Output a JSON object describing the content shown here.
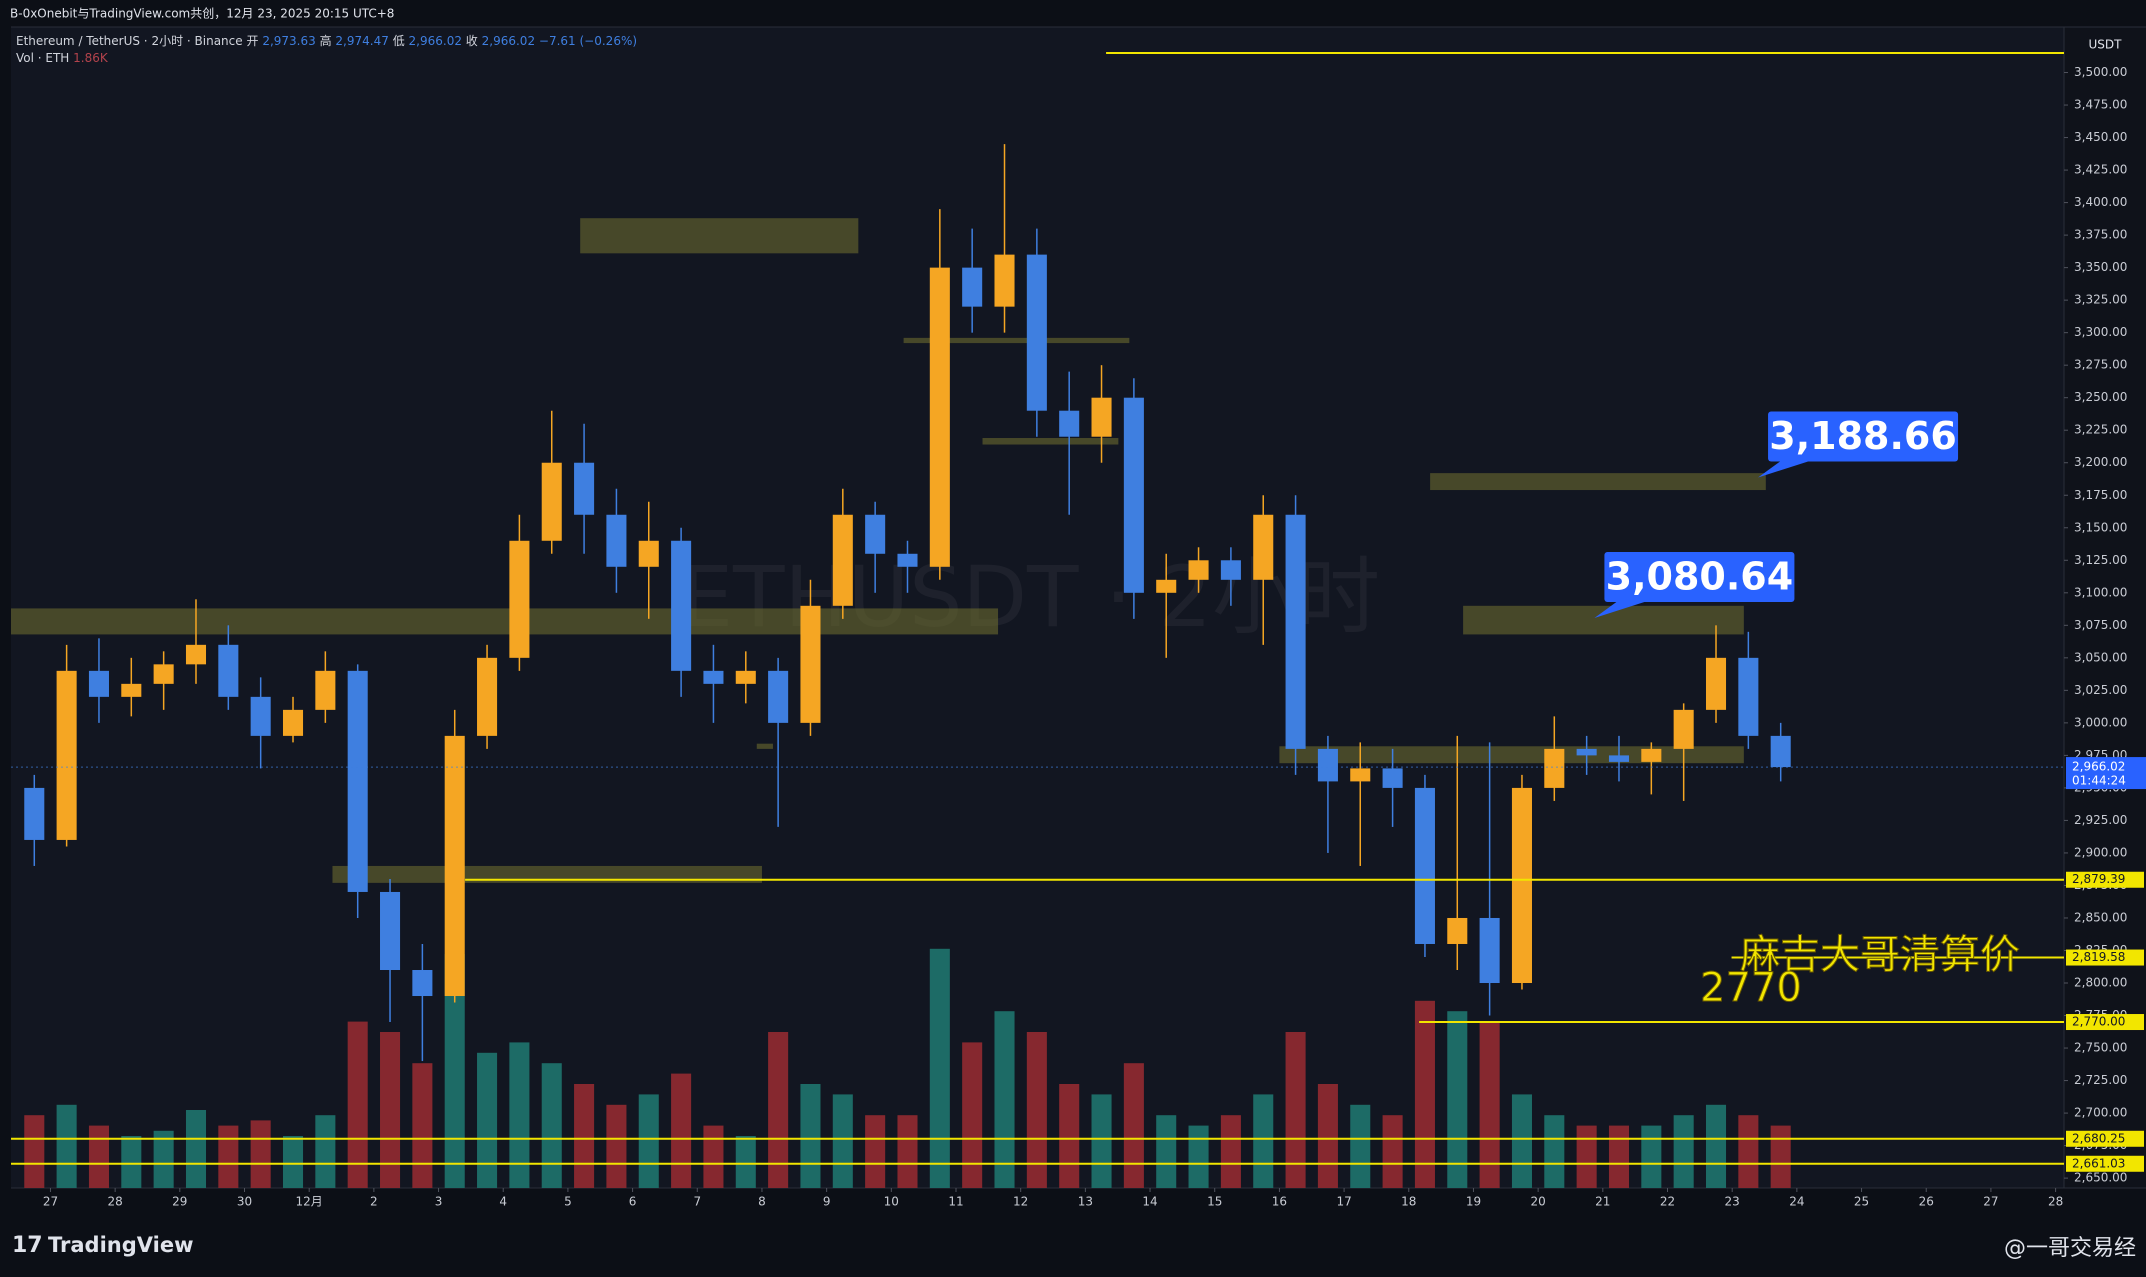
{
  "header": {
    "caption": "B-0xOnebit与TradingView.com共创，12月 23, 2025 20:15 UTC+8",
    "symbol": "Ethereum / TetherUS · 2小时 · Binance",
    "ohlc": [
      {
        "label": "开",
        "value": "2,973.63"
      },
      {
        "label": "高",
        "value": "2,974.47"
      },
      {
        "label": "低",
        "value": "2,966.02"
      },
      {
        "label": "收",
        "value": "2,966.02"
      }
    ],
    "change": "−7.61 (−0.26%)",
    "vol_label": "Vol · ETH",
    "vol_value": "1.86K",
    "currency": "USDT",
    "watermark": "ETHUSDT · 2小时"
  },
  "chart_data": {
    "type": "candlestick",
    "up_color": "#f5a623",
    "down_color": "#3f7fe0",
    "vol_up_color": "#1d6b66",
    "vol_down_color": "#86282f",
    "x": [
      -0.25,
      0.25,
      0.75,
      1.25,
      1.75,
      2.25,
      2.75,
      3.25,
      3.75,
      4.25,
      4.75,
      5.25,
      5.75,
      6.25,
      6.75,
      7.25,
      7.75,
      8.25,
      8.75,
      9.25,
      9.75,
      10.25,
      10.75,
      11.25,
      11.75,
      12.25,
      12.75,
      13.25,
      13.75,
      14.25,
      14.75,
      15.25,
      15.75,
      16.25,
      16.75,
      17.25,
      17.75,
      18.25,
      18.75,
      19.25,
      19.75,
      20.25,
      20.75,
      21.25,
      21.75,
      22.25,
      22.75,
      23.25,
      23.75,
      24.25,
      24.75,
      25.25,
      25.75,
      26.25,
      26.75
    ],
    "open": [
      2950,
      2910,
      3040,
      3020,
      3030,
      3045,
      3060,
      3020,
      2990,
      3010,
      3040,
      2870,
      2810,
      2790,
      2990,
      3050,
      3140,
      3200,
      3160,
      3120,
      3140,
      3040,
      3030,
      3040,
      3000,
      3090,
      3160,
      3130,
      3120,
      3350,
      3320,
      3360,
      3240,
      3220,
      3250,
      3100,
      3110,
      3125,
      3110,
      3160,
      2980,
      2955,
      2965,
      2950,
      2830,
      2850,
      2800,
      2950,
      2980,
      2975,
      2970,
      2980,
      3010,
      3050,
      2990
    ],
    "high": [
      2960,
      3060,
      3065,
      3050,
      3055,
      3095,
      3075,
      3035,
      3020,
      3055,
      3045,
      2880,
      2830,
      3010,
      3060,
      3160,
      3240,
      3230,
      3180,
      3170,
      3150,
      3060,
      3055,
      3050,
      3110,
      3180,
      3170,
      3140,
      3395,
      3380,
      3445,
      3380,
      3270,
      3275,
      3265,
      3130,
      3135,
      3135,
      3175,
      3175,
      2990,
      2985,
      2980,
      2960,
      2990,
      2985,
      2960,
      3005,
      2990,
      2990,
      2985,
      3015,
      3075,
      3070,
      3000
    ],
    "low": [
      2890,
      2905,
      3000,
      3005,
      3010,
      3030,
      3010,
      2965,
      2985,
      3000,
      2850,
      2770,
      2740,
      2785,
      2980,
      3040,
      3130,
      3130,
      3100,
      3080,
      3020,
      3000,
      3015,
      2920,
      2990,
      3080,
      3100,
      3100,
      3110,
      3300,
      3300,
      3220,
      3160,
      3200,
      3080,
      3050,
      3100,
      3090,
      3060,
      2960,
      2900,
      2890,
      2920,
      2820,
      2810,
      2775,
      2795,
      2940,
      2960,
      2955,
      2945,
      2940,
      3000,
      2980,
      2955
    ],
    "close": [
      2910,
      3040,
      3020,
      3030,
      3045,
      3060,
      3020,
      2990,
      3010,
      3040,
      2870,
      2810,
      2790,
      2990,
      3050,
      3140,
      3200,
      3160,
      3120,
      3140,
      3040,
      3030,
      3040,
      3000,
      3090,
      3160,
      3130,
      3120,
      3350,
      3320,
      3360,
      3240,
      3220,
      3250,
      3100,
      3110,
      3125,
      3110,
      3160,
      2980,
      2955,
      2965,
      2950,
      2830,
      2850,
      2800,
      2950,
      2980,
      2975,
      2970,
      2980,
      3010,
      3050,
      2990,
      2966.02
    ],
    "volume": [
      14,
      16,
      12,
      10,
      11,
      15,
      12,
      13,
      10,
      14,
      32,
      30,
      24,
      45,
      26,
      28,
      24,
      20,
      16,
      18,
      22,
      12,
      10,
      30,
      20,
      18,
      14,
      14,
      46,
      28,
      34,
      30,
      20,
      18,
      24,
      14,
      12,
      14,
      18,
      30,
      20,
      16,
      14,
      36,
      34,
      32,
      18,
      14,
      12,
      12,
      12,
      14,
      16,
      14,
      12
    ],
    "vlim": [
      0,
      60
    ],
    "xlim": [
      -0.61,
      31.13
    ],
    "ylim": [
      2642.4,
      3535
    ],
    "xticks": [
      {
        "value": 0,
        "label": "27"
      },
      {
        "value": 1,
        "label": "28"
      },
      {
        "value": 2,
        "label": "29"
      },
      {
        "value": 3,
        "label": "30"
      },
      {
        "value": 4,
        "label": "12月"
      },
      {
        "value": 5,
        "label": "2"
      },
      {
        "value": 6,
        "label": "3"
      },
      {
        "value": 7,
        "label": "4"
      },
      {
        "value": 8,
        "label": "5"
      },
      {
        "value": 9,
        "label": "6"
      },
      {
        "value": 10,
        "label": "7"
      },
      {
        "value": 11,
        "label": "8"
      },
      {
        "value": 12,
        "label": "9"
      },
      {
        "value": 13,
        "label": "10"
      },
      {
        "value": 14,
        "label": "11"
      },
      {
        "value": 15,
        "label": "12"
      },
      {
        "value": 16,
        "label": "13"
      },
      {
        "value": 17,
        "label": "14"
      },
      {
        "value": 18,
        "label": "15"
      },
      {
        "value": 19,
        "label": "16"
      },
      {
        "value": 20,
        "label": "17"
      },
      {
        "value": 21,
        "label": "18"
      },
      {
        "value": 22,
        "label": "19"
      },
      {
        "value": 23,
        "label": "20"
      },
      {
        "value": 24,
        "label": "21"
      },
      {
        "value": 25,
        "label": "22"
      },
      {
        "value": 26,
        "label": "23"
      },
      {
        "value": 27,
        "label": "24"
      },
      {
        "value": 28,
        "label": "25"
      },
      {
        "value": 29,
        "label": "26"
      },
      {
        "value": 30,
        "label": "27"
      },
      {
        "value": 31,
        "label": "28"
      }
    ],
    "yticks": [
      {
        "value": 3500,
        "label": "3,500.00"
      },
      {
        "value": 3475,
        "label": "3,475.00"
      },
      {
        "value": 3450,
        "label": "3,450.00"
      },
      {
        "value": 3425,
        "label": "3,425.00"
      },
      {
        "value": 3400,
        "label": "3,400.00"
      },
      {
        "value": 3375,
        "label": "3,375.00"
      },
      {
        "value": 3350,
        "label": "3,350.00"
      },
      {
        "value": 3325,
        "label": "3,325.00"
      },
      {
        "value": 3300,
        "label": "3,300.00"
      },
      {
        "value": 3275,
        "label": "3,275.00"
      },
      {
        "value": 3250,
        "label": "3,250.00"
      },
      {
        "value": 3225,
        "label": "3,225.00"
      },
      {
        "value": 3200,
        "label": "3,200.00"
      },
      {
        "value": 3175,
        "label": "3,175.00"
      },
      {
        "value": 3150,
        "label": "3,150.00"
      },
      {
        "value": 3125,
        "label": "3,125.00"
      },
      {
        "value": 3100,
        "label": "3,100.00"
      },
      {
        "value": 3075,
        "label": "3,075.00"
      },
      {
        "value": 3050,
        "label": "3,050.00"
      },
      {
        "value": 3025,
        "label": "3,025.00"
      },
      {
        "value": 3000,
        "label": "3,000.00"
      },
      {
        "value": 2975,
        "label": "2,975.00"
      },
      {
        "value": 2950,
        "label": "2,950.00"
      },
      {
        "value": 2925,
        "label": "2,925.00"
      },
      {
        "value": 2900,
        "label": "2,900.00"
      },
      {
        "value": 2875,
        "label": "2,875.00"
      },
      {
        "value": 2850,
        "label": "2,850.00"
      },
      {
        "value": 2825,
        "label": "2,825.00"
      },
      {
        "value": 2800,
        "label": "2,800.00"
      },
      {
        "value": 2775,
        "label": "2,775.00"
      },
      {
        "value": 2750,
        "label": "2,750.00"
      },
      {
        "value": 2725,
        "label": "2,725.00"
      },
      {
        "value": 2700,
        "label": "2,700.00"
      },
      {
        "value": 2675,
        "label": "2,675.00"
      },
      {
        "value": 2650,
        "label": "2,650.00"
      }
    ],
    "zones": [
      {
        "x": [
          8.19,
          12.49
        ],
        "y": [
          3388,
          3361
        ]
      },
      {
        "x": [
          -0.61,
          14.65
        ],
        "y": [
          3088,
          3068
        ]
      },
      {
        "x": [
          13.19,
          16.68
        ],
        "y": [
          3296,
          3292
        ]
      },
      {
        "x": [
          14.41,
          16.51
        ],
        "y": [
          3219,
          3214
        ]
      },
      {
        "x": [
          21.33,
          26.52
        ],
        "y": [
          3192,
          3179
        ]
      },
      {
        "x": [
          21.84,
          26.18
        ],
        "y": [
          3090,
          3068
        ]
      },
      {
        "x": [
          19.0,
          26.18
        ],
        "y": [
          2982,
          2969
        ]
      },
      {
        "x": [
          4.36,
          11.0
        ],
        "y": [
          2890,
          2877
        ]
      },
      {
        "x": [
          10.92,
          11.17
        ],
        "y": [
          2984,
          2980
        ]
      }
    ],
    "levels": [
      {
        "value": 3515,
        "start": 16.32
      },
      {
        "value": 2879.39,
        "start": 6.41,
        "label": "2,879.39"
      },
      {
        "value": 2819.58,
        "start": 25.99,
        "label": "2,819.58"
      },
      {
        "value": 2770,
        "start": 21.16,
        "label": "2,770.00"
      },
      {
        "value": 2680.25,
        "start": -0.61,
        "label": "2,680.25"
      },
      {
        "value": 2661.03,
        "start": -0.61,
        "label": "2,661.03"
      }
    ],
    "last": {
      "value": 2966.02,
      "label": "2,966.02",
      "countdown": "01:44:24"
    },
    "callouts": [
      {
        "x": 26.4,
        "value": 3188.66,
        "label": "3,188.66"
      },
      {
        "x": 23.87,
        "value": 3080.64,
        "label": "3,080.64"
      }
    ],
    "annotations": [
      "麻吉大哥清算价",
      "2770"
    ]
  },
  "footer": {
    "brand": "TradingView",
    "author": "@一哥交易经"
  }
}
